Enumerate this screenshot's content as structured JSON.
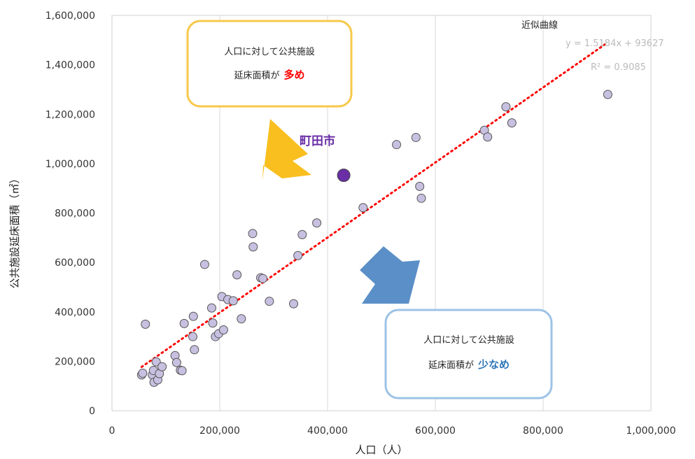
{
  "chart_data": {
    "type": "scatter",
    "xlabel": "人口（人）",
    "ylabel": "公共施設延床面積（㎡）",
    "xlim": [
      0,
      1000000
    ],
    "ylim": [
      0,
      1600000
    ],
    "x_tick_labels": [
      "0",
      "200,000",
      "400,000",
      "600,000",
      "800,000",
      "1,000,000"
    ],
    "y_tick_labels": [
      "0",
      "200,000",
      "400,000",
      "600,000",
      "800,000",
      "1,000,000",
      "1,200,000",
      "1,400,000",
      "1,600,000"
    ],
    "grid": "vertical",
    "point_color": "#c8c0e0",
    "point_stroke": "#555555",
    "points": [
      {
        "x": 55000,
        "y": 145000
      },
      {
        "x": 57000,
        "y": 152000
      },
      {
        "x": 62000,
        "y": 350000
      },
      {
        "x": 75000,
        "y": 145000
      },
      {
        "x": 77000,
        "y": 163000
      },
      {
        "x": 78000,
        "y": 115000
      },
      {
        "x": 82000,
        "y": 198000
      },
      {
        "x": 85000,
        "y": 125000
      },
      {
        "x": 88000,
        "y": 150000
      },
      {
        "x": 93000,
        "y": 178000
      },
      {
        "x": 117000,
        "y": 223000
      },
      {
        "x": 120000,
        "y": 195000
      },
      {
        "x": 127000,
        "y": 164000
      },
      {
        "x": 130000,
        "y": 162000
      },
      {
        "x": 134000,
        "y": 353000
      },
      {
        "x": 150000,
        "y": 300000
      },
      {
        "x": 151000,
        "y": 382000
      },
      {
        "x": 153000,
        "y": 247000
      },
      {
        "x": 172000,
        "y": 592000
      },
      {
        "x": 185000,
        "y": 416000
      },
      {
        "x": 187000,
        "y": 355000
      },
      {
        "x": 192000,
        "y": 300000
      },
      {
        "x": 198000,
        "y": 312000
      },
      {
        "x": 204000,
        "y": 462000
      },
      {
        "x": 207000,
        "y": 327000
      },
      {
        "x": 215000,
        "y": 450000
      },
      {
        "x": 225000,
        "y": 445000
      },
      {
        "x": 232000,
        "y": 550000
      },
      {
        "x": 240000,
        "y": 372000
      },
      {
        "x": 261000,
        "y": 717000
      },
      {
        "x": 262000,
        "y": 663000
      },
      {
        "x": 276000,
        "y": 538000
      },
      {
        "x": 280000,
        "y": 535000
      },
      {
        "x": 292000,
        "y": 443000
      },
      {
        "x": 337000,
        "y": 433000
      },
      {
        "x": 345000,
        "y": 628000
      },
      {
        "x": 353000,
        "y": 713000
      },
      {
        "x": 380000,
        "y": 760000
      },
      {
        "x": 466000,
        "y": 822000
      },
      {
        "x": 528000,
        "y": 1077000
      },
      {
        "x": 564000,
        "y": 1106000
      },
      {
        "x": 571000,
        "y": 908000
      },
      {
        "x": 574000,
        "y": 860000
      },
      {
        "x": 691000,
        "y": 1135000
      },
      {
        "x": 697000,
        "y": 1108000
      },
      {
        "x": 731000,
        "y": 1230000
      },
      {
        "x": 742000,
        "y": 1165000
      },
      {
        "x": 920000,
        "y": 1280000
      }
    ],
    "highlight": {
      "label": "町田市",
      "x": 430000,
      "y": 953000,
      "color": "#6a2fa6"
    },
    "trendline": {
      "label": "近似曲線",
      "equation": "y = 1.5184x + 93627",
      "r2": "R² = 0.9085",
      "slope": 1.5184,
      "intercept": 93627,
      "x_range": [
        55000,
        920000
      ],
      "color": "#ff0000"
    }
  },
  "callouts": {
    "more": {
      "line1": "人口に対して公共施設",
      "line2": "延床面積が",
      "emphasis": "多め",
      "box_color": "#f7c84a",
      "emphasis_color": "#ff0000",
      "arrow_color": "#f9bf1f"
    },
    "less": {
      "line1": "人口に対して公共施設",
      "line2": "延床面積が",
      "emphasis": "少なめ",
      "box_color": "#9dc3e6",
      "emphasis_color": "#2e75b6",
      "arrow_color": "#5b8fc7"
    }
  }
}
